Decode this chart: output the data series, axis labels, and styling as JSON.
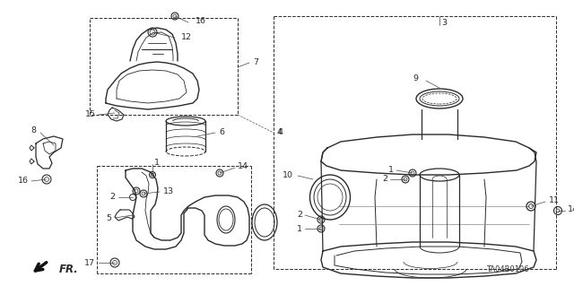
{
  "background_color": "#ffffff",
  "line_color": "#2a2a2a",
  "diagram_ref": "TA04B0106",
  "fig_width": 6.4,
  "fig_height": 3.19,
  "dpi": 100
}
